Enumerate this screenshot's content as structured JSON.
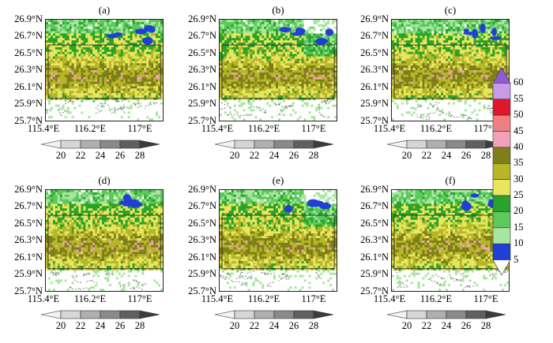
{
  "panels": [
    {
      "label": "(a)"
    },
    {
      "label": "(b)"
    },
    {
      "label": "(c)"
    },
    {
      "label": "(d)"
    },
    {
      "label": "(e)"
    },
    {
      "label": "(f)"
    }
  ],
  "map": {
    "lat_ticks": [
      "26.9°N",
      "26.7°N",
      "26.5°N",
      "26.3°N",
      "26.1°N",
      "25.9°N",
      "25.7°N"
    ],
    "lon_ticks": [
      "115.4°E",
      "116.2°E",
      "117°E"
    ]
  },
  "horizontal_colorbar": {
    "labels": [
      "20",
      "22",
      "24",
      "26",
      "28"
    ],
    "colors": [
      "#f2f2f2",
      "#d6d6d6",
      "#b0b0b0",
      "#8a8a8a",
      "#606060",
      "#3c3c3c"
    ]
  },
  "vertical_colorbar": {
    "labels": [
      "60",
      "55",
      "50",
      "45",
      "40",
      "35",
      "30",
      "25",
      "20",
      "15",
      "10",
      "5"
    ],
    "colors": [
      "#8f5bd6",
      "#c79be6",
      "#e0172a",
      "#f08080",
      "#f2a2b8",
      "#7f7f1a",
      "#b6b629",
      "#e7e65e",
      "#29a329",
      "#5bc95b",
      "#a8e6a0",
      "#1f3fd6",
      "#ffffff"
    ]
  }
}
